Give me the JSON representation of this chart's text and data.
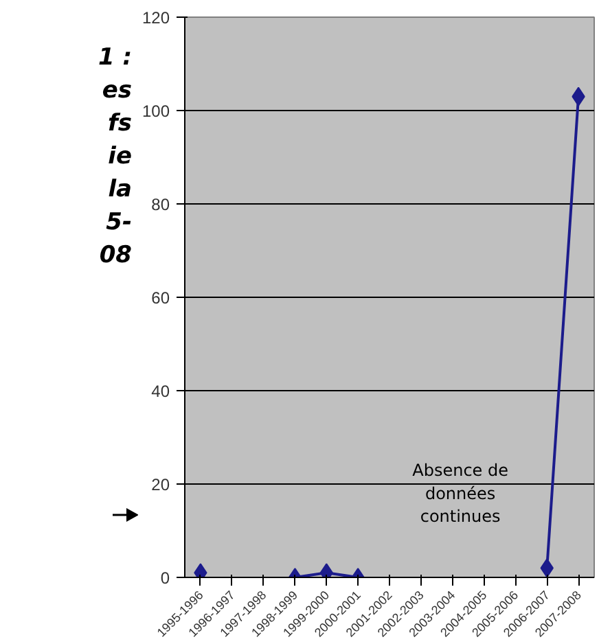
{
  "chart_data": {
    "type": "line",
    "categories": [
      "1995-1996",
      "1996-1997",
      "1997-1998",
      "1998-1999",
      "1999-2000",
      "2000-2001",
      "2001-2002",
      "2002-2003",
      "2003-2004",
      "2004-2005",
      "2005-2006",
      "2006-2007",
      "2007-2008"
    ],
    "series": [
      {
        "color": "#1c1c8c",
        "values": [
          1,
          null,
          null,
          0,
          1,
          0,
          null,
          null,
          null,
          null,
          null,
          2,
          103
        ]
      }
    ],
    "ylim": [
      0,
      120
    ],
    "yticks": [
      0,
      20,
      40,
      60,
      80,
      100,
      120
    ],
    "grid": "y",
    "marker": "diamond",
    "line_style": "solid",
    "annotations": [
      "1 :\nes\nfs\nie\nla\n5-\n08",
      "Absence de\ndonnées\ncontinues"
    ]
  }
}
